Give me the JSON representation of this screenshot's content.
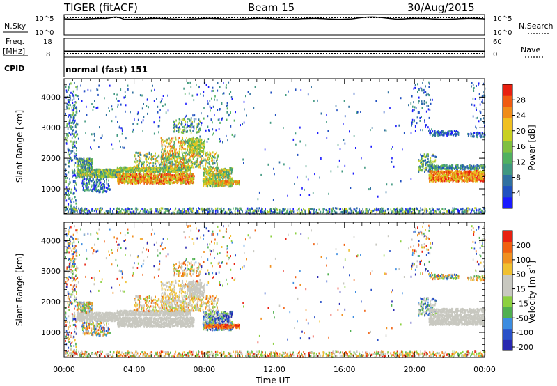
{
  "header": {
    "station": "TIGER (fitACF)",
    "beam": "Beam 15",
    "date": "30/Aug/2015"
  },
  "top_panels": {
    "nsky": {
      "label": "N.Sky",
      "ticks": [
        "10^5",
        "10^0"
      ]
    },
    "nsearch": {
      "label": "N.Search",
      "ticks": [
        "10^5",
        "10^0"
      ]
    },
    "freq": {
      "label_line1": "Freq.",
      "label_line2": "[MHz]",
      "ticks": [
        "18",
        "8"
      ]
    },
    "nave": {
      "label": "Nave",
      "ticks": [
        "60",
        "0"
      ]
    },
    "cpid": {
      "label": "CPID",
      "value": "normal (fast) 151"
    }
  },
  "chart_data": [
    {
      "type": "heatmap",
      "name": "power",
      "ylabel": "Slant Range [km]",
      "yticks": [
        "1000",
        "2000",
        "3000",
        "4000"
      ],
      "ylim": [
        180,
        4600
      ],
      "xlim": [
        0,
        24
      ],
      "xticks": [
        "00:00",
        "04:00",
        "08:00",
        "12:00",
        "16:00",
        "20:00",
        "00:00"
      ],
      "colorbar": {
        "label": "Power [dB]",
        "ticks": [
          "4",
          "8",
          "12",
          "16",
          "20",
          "24",
          "28"
        ],
        "range": [
          0,
          32
        ],
        "colors": [
          "#1a1aff",
          "#2050c0",
          "#3070a0",
          "#409880",
          "#50b060",
          "#80c040",
          "#c8d020",
          "#f0c020",
          "#f08c18",
          "#f05a10",
          "#e82010"
        ]
      }
    },
    {
      "type": "heatmap",
      "name": "velocity",
      "ylabel": "Slant Range [km]",
      "yticks": [
        "1000",
        "2000",
        "3000",
        "4000"
      ],
      "ylim": [
        180,
        4600
      ],
      "xlim": [
        0,
        24
      ],
      "xticks": [
        "00:00",
        "04:00",
        "08:00",
        "12:00",
        "16:00",
        "20:00",
        "00:00"
      ],
      "xlabel": "Time UT",
      "colorbar": {
        "label": "Velocity [m s-1]",
        "ticks": [
          "200",
          "100",
          "50",
          "15",
          "-15",
          "-50",
          "-100",
          "-200"
        ],
        "colors": [
          "#2828b0",
          "#2850c8",
          "#3c8ce0",
          "#50b050",
          "#8cd040",
          "#c8c8c0",
          "#c8c8c0",
          "#f0c030",
          "#f09020",
          "#f06010",
          "#e82010"
        ]
      }
    }
  ]
}
